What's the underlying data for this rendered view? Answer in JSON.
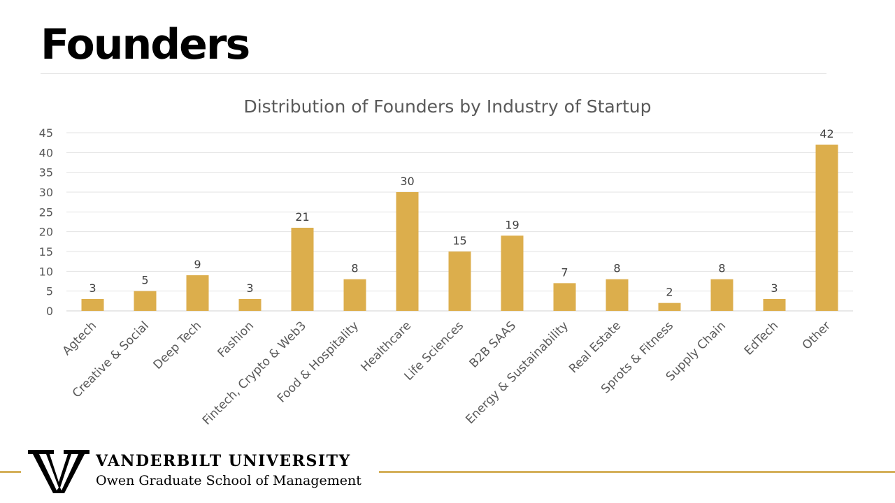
{
  "slide": {
    "title": "Founders"
  },
  "footer": {
    "university": "VANDERBILT UNIVERSITY",
    "school": "Owen Graduate School of Management",
    "accent_color": "#D4B05B"
  },
  "chart_data": {
    "type": "bar",
    "title": "Distribution of Founders by Industry of Startup",
    "xlabel": "",
    "ylabel": "",
    "ylim": [
      0,
      45
    ],
    "yticks": [
      0,
      5,
      10,
      15,
      20,
      25,
      30,
      35,
      40,
      45
    ],
    "grid": true,
    "bar_color": "#DCAE4C",
    "categories": [
      "Agtech",
      "Creative & Social",
      "Deep Tech",
      "Fashion",
      "Fintech, Crypto & Web3",
      "Food & Hospitality",
      "Healthcare",
      "Life Sciences",
      "B2B SAAS",
      "Energy & Sustainability",
      "Real Estate",
      "Sprots & Fitness",
      "Supply Chain",
      "EdTech",
      "Other"
    ],
    "values": [
      3,
      5,
      9,
      3,
      21,
      8,
      30,
      15,
      19,
      7,
      8,
      2,
      8,
      3,
      42
    ]
  }
}
